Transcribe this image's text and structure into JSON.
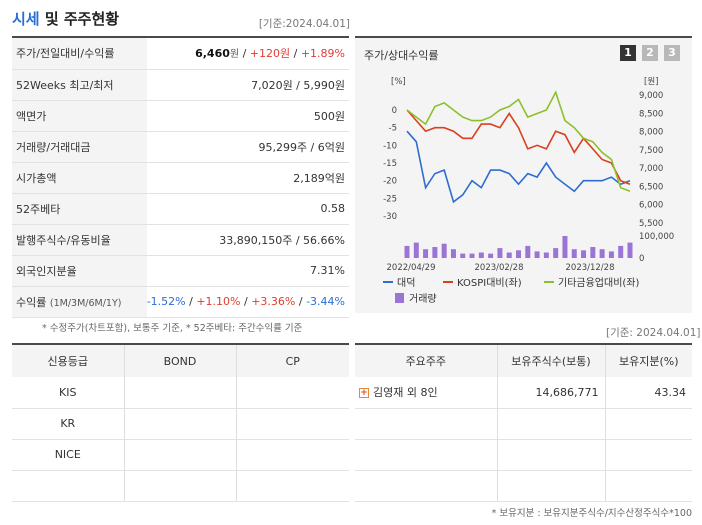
{
  "header": {
    "title_accent": "시세",
    "title_rest": " 및 주주현황",
    "asof_top": "[기준:2024.04.01]",
    "asof_lower": "[기준: 2024.04.01]"
  },
  "info_rows": [
    {
      "key": "주가/전일대비/수익률"
    },
    {
      "key": "52Weeks 최고/최저",
      "value": "7,020원 / 5,990원"
    },
    {
      "key": "액면가",
      "value": "500원"
    },
    {
      "key": "거래량/거래대금",
      "value": "95,299주 / 6억원"
    },
    {
      "key": "시가총액",
      "value": "2,189억원"
    },
    {
      "key": "52주베타",
      "value": "0.58"
    },
    {
      "key": "발행주식수/유동비율",
      "value": "33,890,150주 / 56.66%"
    },
    {
      "key": "외국인지분율",
      "value": "7.31%"
    },
    {
      "key": "수익률",
      "key_small": "(1M/3M/6M/1Y)"
    }
  ],
  "price": {
    "value": "6,460",
    "unit": "원",
    "sep": " / ",
    "change": "+120원",
    "pct": "+1.89%"
  },
  "returns": {
    "r1m": "-1.52%",
    "r3m": "+1.10%",
    "r6m": "+3.36%",
    "r1y": "-3.44%",
    "sep": " / "
  },
  "notes": {
    "left": "* 수정주가(차트포함), 보통주 기준, * 52주베타: 주간수익률 기준",
    "right": "* 보유지분 : 보유지분주식수/지수산정주식수*100"
  },
  "chart": {
    "title": "주가/상대수익률",
    "tabs": [
      "1",
      "2",
      "3"
    ]
  },
  "chart_data": {
    "type": "line",
    "y_left": {
      "label": "[%]",
      "ticks": [
        "0",
        "-5",
        "-10",
        "-15",
        "-20",
        "-25",
        "-30"
      ],
      "range": [
        -30,
        0
      ]
    },
    "y_right": {
      "label": "[원]",
      "ticks": [
        "9,000",
        "8,500",
        "8,000",
        "7,500",
        "7,000",
        "6,500",
        "6,000",
        "5,500"
      ],
      "range": [
        5500,
        9000
      ]
    },
    "volume_axis": {
      "ticks": [
        "100,000",
        "0"
      ]
    },
    "x_ticks": [
      "2022/04/29",
      "2023/02/28",
      "2023/12/28"
    ],
    "series": [
      {
        "name": "대덕",
        "color": "#2f6ed0",
        "axis": "left",
        "values": [
          -6,
          -9,
          -22,
          -18,
          -17,
          -26,
          -24,
          -20,
          -22,
          -17,
          -17,
          -18,
          -21,
          -18,
          -19,
          -15,
          -19,
          -21,
          -23,
          -20,
          -20,
          -20,
          -19,
          -21,
          -20
        ]
      },
      {
        "name": "KOSPI대비(좌)",
        "color": "#d8401e",
        "axis": "left",
        "values": [
          0,
          -3,
          -6,
          -5,
          -5,
          -6,
          -8,
          -8,
          -4,
          -4,
          -5,
          -1,
          -5,
          -11,
          -10,
          -11,
          -6,
          -7,
          -12,
          -8,
          -11,
          -14,
          -15,
          -20,
          -21
        ]
      },
      {
        "name": "기타금융업대비(좌)",
        "color": "#8cc02a",
        "axis": "left",
        "values": [
          0,
          -2,
          -4,
          1,
          2,
          0,
          -2,
          -3,
          -3,
          -2,
          0,
          1,
          3,
          -2,
          -1,
          0,
          5,
          -3,
          -5,
          -8,
          -9,
          -12,
          -14,
          -22,
          -23
        ]
      },
      {
        "name": "거래량",
        "color": "#9b75d6",
        "axis": "volume",
        "values": [
          55000,
          70000,
          40000,
          50000,
          65000,
          40000,
          20000,
          20000,
          25000,
          20000,
          45000,
          25000,
          35000,
          55000,
          30000,
          25000,
          45000,
          100000,
          40000,
          35000,
          50000,
          40000,
          30000,
          55000,
          70000
        ]
      }
    ],
    "legend": [
      "대덕",
      "KOSPI대비(좌)",
      "기타금융업대비(좌)",
      "거래량"
    ]
  },
  "credit": {
    "headers": [
      "신용등급",
      "BOND",
      "CP"
    ],
    "rows": [
      {
        "name": "KIS",
        "bond": "",
        "cp": ""
      },
      {
        "name": "KR",
        "bond": "",
        "cp": ""
      },
      {
        "name": "NICE",
        "bond": "",
        "cp": ""
      },
      {
        "name": "",
        "bond": "",
        "cp": ""
      }
    ]
  },
  "holders": {
    "headers": [
      "주요주주",
      "보유주식수(보통)",
      "보유지분(%)"
    ],
    "rows": [
      {
        "name": "김영재 외 8인",
        "shares": "14,686,771",
        "pct": "43.34"
      },
      {
        "name": "",
        "shares": "",
        "pct": ""
      },
      {
        "name": "",
        "shares": "",
        "pct": ""
      },
      {
        "name": "",
        "shares": "",
        "pct": ""
      }
    ]
  }
}
